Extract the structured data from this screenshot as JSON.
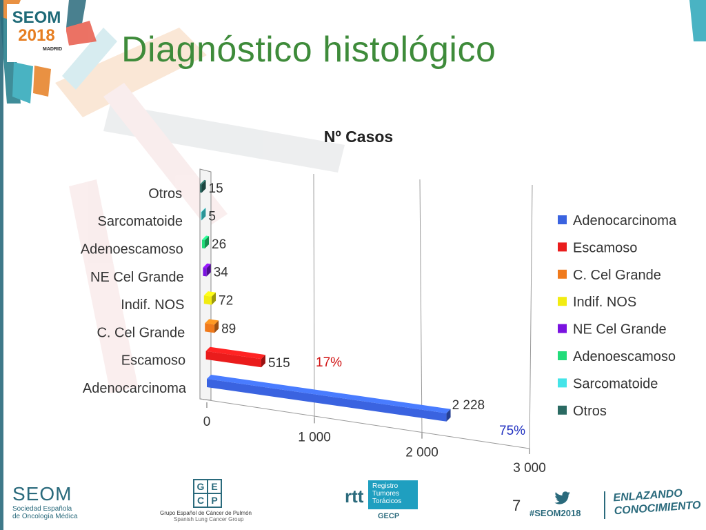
{
  "slide": {
    "title": "Diagnóstico histológico",
    "page_number": "7",
    "logo": {
      "line1": "SEOM",
      "line2": "2018",
      "line3": "MADRID"
    },
    "footer": {
      "seom_name": "SEOM",
      "seom_sub1": "Sociedad Española",
      "seom_sub2": "de Oncología Médica",
      "gecp_letters": [
        "G",
        "E",
        "C",
        "P"
      ],
      "gecp_caption": "Grupo Español de Cáncer de Pulmón",
      "gecp_caption2": "Spanish Lung Cancer Group",
      "rtt_word": "rtt",
      "rtt_box": [
        "Registro",
        "Tumores",
        "Torácicos"
      ],
      "rtt_gecp": "GECP",
      "hashtag": "#SEOM2018",
      "slogan_line1": "ENLAZANDO",
      "slogan_line2": "CONOCIMIENTO"
    },
    "colors": {
      "title": "#3e8b3a",
      "brand": "#2a6a7c",
      "accent_orange": "#e67e22"
    }
  },
  "chart_data": {
    "type": "bar",
    "orientation": "horizontal",
    "style": "3d",
    "title": "Nº Casos",
    "categories": [
      "Adenocarcinoma",
      "Escamoso",
      "C. Cel Grande",
      "Indif. NOS",
      "NE Cel Grande",
      "Adenoescamoso",
      "Sarcomatoide",
      "Otros"
    ],
    "values": [
      2228,
      515,
      89,
      72,
      34,
      26,
      5,
      15
    ],
    "value_labels": [
      "2 228",
      "515",
      "89",
      "72",
      "34",
      "26",
      "5",
      "15"
    ],
    "colors": [
      "#3a63e0",
      "#ea1c1c",
      "#f07a1c",
      "#f2ec12",
      "#7a12e0",
      "#22dc7a",
      "#44e4e8",
      "#2a6a62"
    ],
    "xlim": [
      0,
      3000
    ],
    "xticks": [
      0,
      1000,
      2000,
      3000
    ],
    "xtick_labels": [
      "0",
      "1 000",
      "2 000",
      "3 000"
    ],
    "grid": true,
    "legend_position": "right",
    "legend": [
      "Adenocarcinoma",
      "Escamoso",
      "C. Cel Grande",
      "Indif. NOS",
      "NE Cel Grande",
      "Adenoescamoso",
      "Sarcomatoide",
      "Otros"
    ],
    "annotations": [
      {
        "text": "17%",
        "category": "Escamoso",
        "color": "#d01010"
      },
      {
        "text": "75%",
        "category": "Adenocarcinoma",
        "color": "#2030c0"
      }
    ]
  }
}
